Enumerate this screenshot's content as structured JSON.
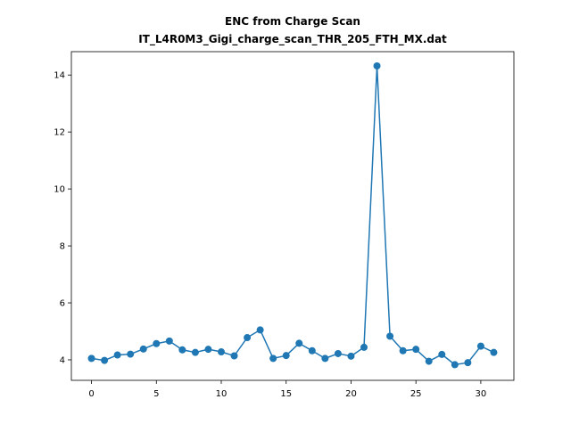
{
  "chart_data": {
    "type": "line",
    "title": "ENC from Charge Scan",
    "subtitle": "IT_L4R0M3_Gigi_charge_scan_THR_205_FTH_MX.dat",
    "xlabel": "",
    "ylabel": "",
    "xlim": [
      -1.55,
      32.55
    ],
    "ylim": [
      3.28,
      14.82
    ],
    "xticks": [
      0,
      5,
      10,
      15,
      20,
      25,
      30
    ],
    "yticks": [
      4,
      6,
      8,
      10,
      12,
      14
    ],
    "grid": false,
    "series": [
      {
        "x": [
          0,
          1,
          2,
          3,
          4,
          5,
          6,
          7,
          8,
          9,
          10,
          11,
          12,
          13,
          14,
          15,
          16,
          17,
          18,
          19,
          20,
          21,
          22,
          23,
          24,
          25,
          26,
          27,
          28,
          29,
          30,
          31
        ],
        "values": [
          4.05,
          3.98,
          4.17,
          4.2,
          4.38,
          4.57,
          4.66,
          4.35,
          4.26,
          4.37,
          4.28,
          4.14,
          4.78,
          5.05,
          4.05,
          4.15,
          4.58,
          4.32,
          4.05,
          4.22,
          4.13,
          4.44,
          14.32,
          4.83,
          4.32,
          4.37,
          3.95,
          4.19,
          3.83,
          3.9,
          4.48,
          4.26
        ],
        "color": "#1f77b4",
        "marker": "circle"
      }
    ]
  }
}
